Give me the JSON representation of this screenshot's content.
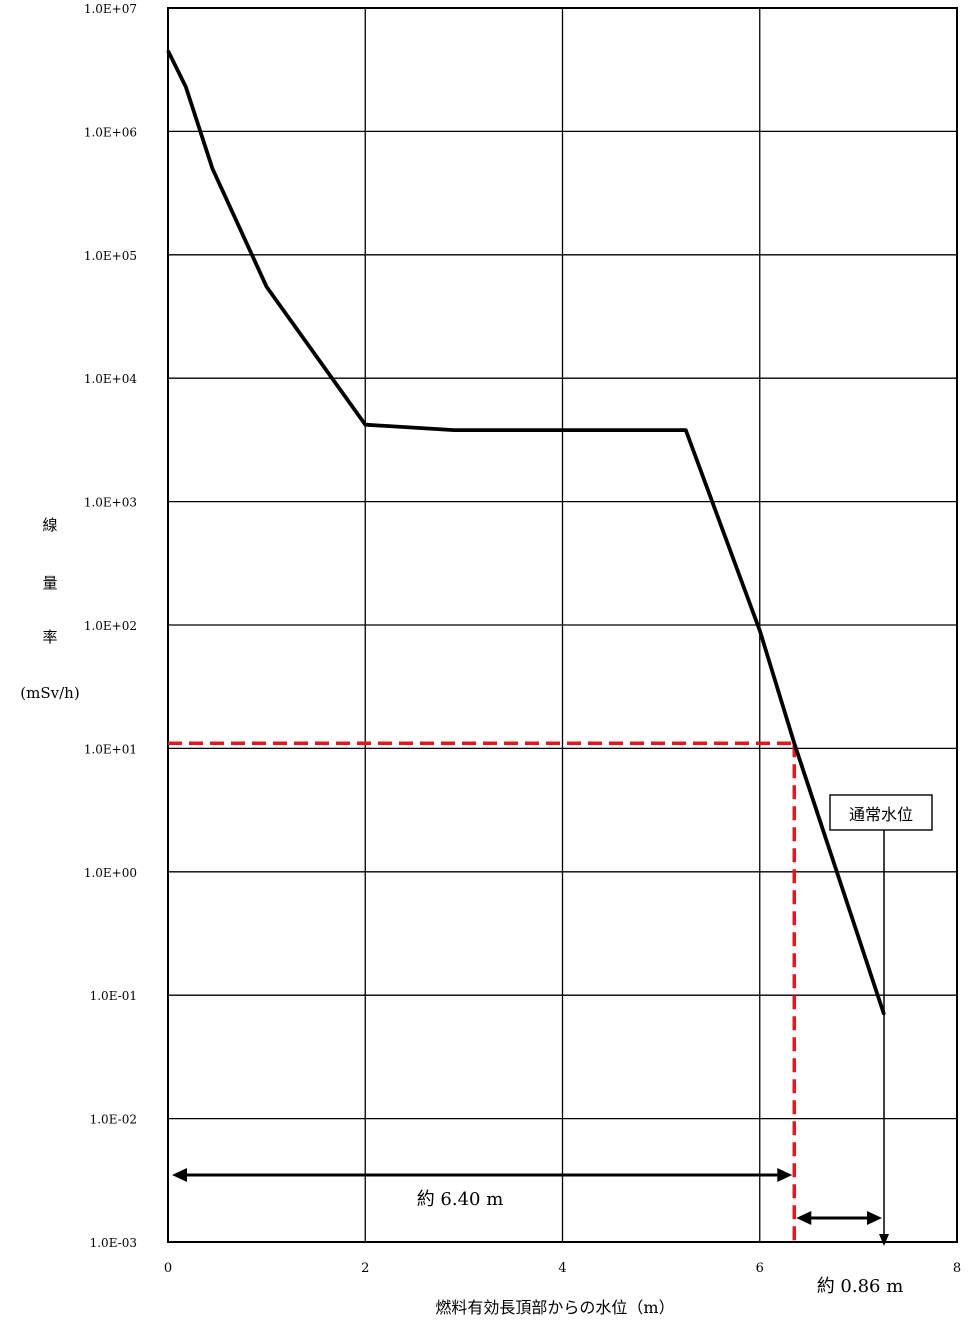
{
  "chart_data": {
    "type": "line",
    "xlabel": "燃料有効長頂部からの水位（m）",
    "ylabel_chars": [
      "線",
      "量",
      "率"
    ],
    "ylabel_unit": "(mSv/h)",
    "y_scale": "log",
    "xlim": [
      0,
      8
    ],
    "ylim": [
      0.001,
      10000000
    ],
    "grid": true,
    "x_ticks": [
      "0",
      "2",
      "4",
      "6",
      "8"
    ],
    "y_ticks": [
      "1.0E+07",
      "1.0E+06",
      "1.0E+05",
      "1.0E+04",
      "1.0E+03",
      "1.0E+02",
      "1.0E+01",
      "1.0E+00",
      "1.0E-01",
      "1.0E-02",
      "1.0E-03"
    ],
    "series": [
      {
        "color": "#000000",
        "x": [
          0.0,
          0.18,
          0.45,
          1.0,
          2.0,
          2.9,
          4.0,
          5.25,
          6.0,
          6.35,
          7.26
        ],
        "y": [
          4500000,
          2300000,
          500000,
          55000,
          4200,
          3800,
          3800,
          3800,
          90,
          11,
          0.07
        ]
      }
    ],
    "annotations": {
      "threshold_y": 11,
      "threshold_x": 6.35,
      "threshold_color": "#e8161b",
      "normal_level_x": 7.26,
      "normal_level_label": "通常水位",
      "span_label_1": "約 6.40 m",
      "span_label_2": "約 0.86 m"
    }
  }
}
